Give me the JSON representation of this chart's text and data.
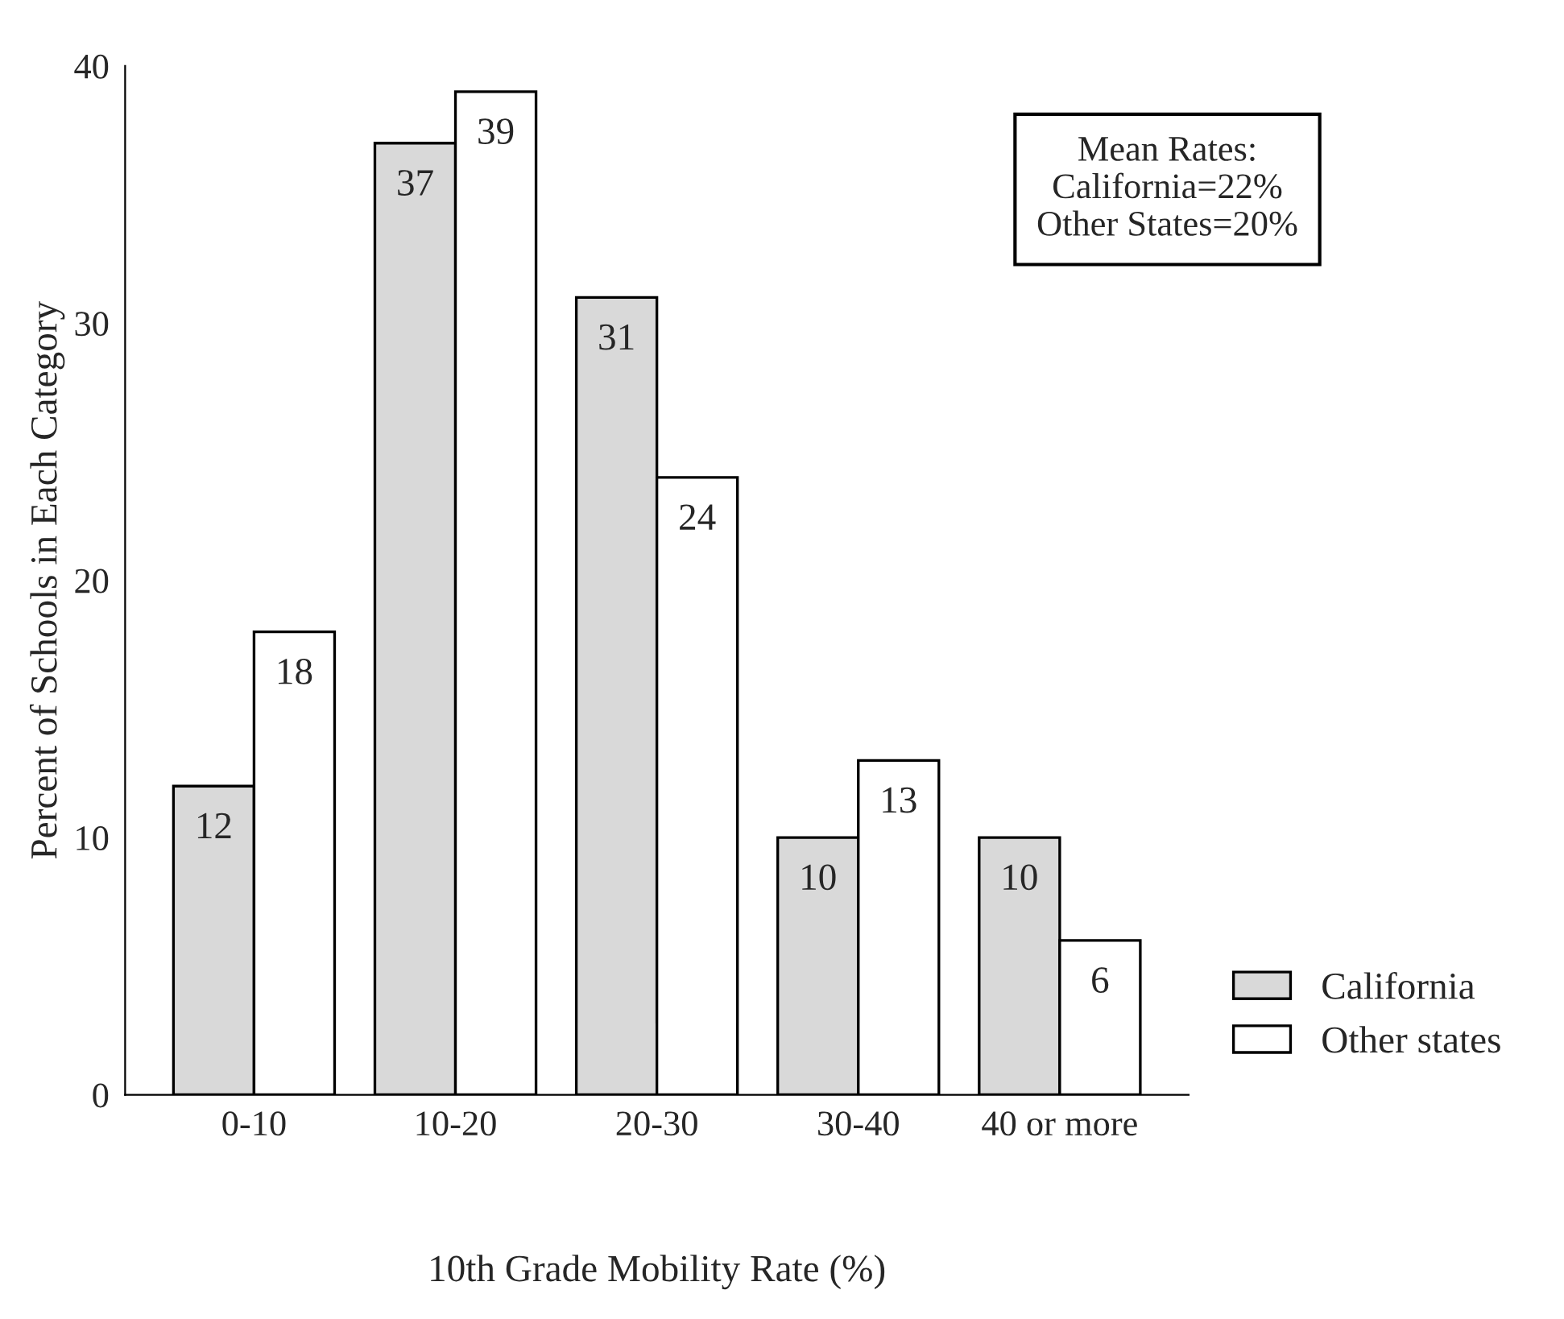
{
  "chart_data": {
    "type": "bar",
    "xlabel": "10th Grade Mobility Rate (%)",
    "ylabel": "Percent of Schools in Each Category",
    "categories": [
      "0-10",
      "10-20",
      "20-30",
      "30-40",
      "40 or more"
    ],
    "series": [
      {
        "name": "California",
        "color": "#d9d9d9",
        "values": [
          12,
          37,
          31,
          10,
          10
        ]
      },
      {
        "name": "Other states",
        "color": "#ffffff",
        "values": [
          18,
          39,
          24,
          13,
          6
        ]
      }
    ],
    "ylim": [
      0,
      40
    ],
    "yticks": [
      0,
      10,
      20,
      30,
      40
    ],
    "data_labels": true,
    "grid": false,
    "legend": "bottom right",
    "annotations": [
      "Mean Rates:\nCalifornia=22%\nOther States=20%"
    ]
  }
}
